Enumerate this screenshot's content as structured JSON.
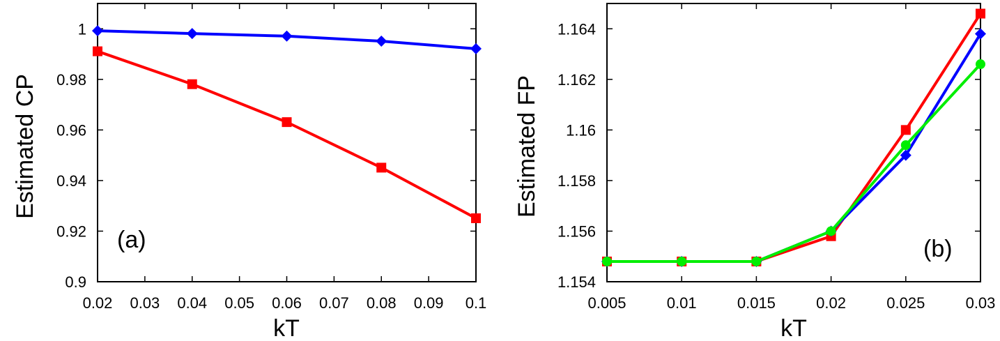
{
  "chart_data": [
    {
      "type": "line",
      "panel_label": "(a)",
      "xlabel": "kT",
      "ylabel": "Estimated CP",
      "xlim": [
        0.02,
        0.1
      ],
      "ylim": [
        0.9,
        1.01
      ],
      "xticks": [
        "0.02",
        "0.03",
        "0.04",
        "0.05",
        "0.06",
        "0.07",
        "0.08",
        "0.09",
        "0.1"
      ],
      "yticks": [
        "0.9",
        "0.92",
        "0.94",
        "0.96",
        "0.98",
        "1"
      ],
      "x": [
        0.02,
        0.04,
        0.06,
        0.08,
        0.1
      ],
      "series": [
        {
          "color": "#0000ff",
          "marker": "diamond",
          "values": [
            0.9992,
            0.9981,
            0.9971,
            0.9951,
            0.9921
          ]
        },
        {
          "color": "#ff0000",
          "marker": "square",
          "values": [
            0.9911,
            0.9781,
            0.9631,
            0.9451,
            0.9251
          ]
        }
      ],
      "grid": false
    },
    {
      "type": "line",
      "panel_label": "(b)",
      "xlabel": "kT",
      "ylabel": "Estimated FP",
      "xlim": [
        0.005,
        0.03
      ],
      "ylim": [
        1.154,
        1.165
      ],
      "xticks": [
        "0.005",
        "0.01",
        "0.015",
        "0.02",
        "0.025",
        "0.03"
      ],
      "yticks": [
        "1.154",
        "1.156",
        "1.158",
        "1.16",
        "1.162",
        "1.164"
      ],
      "x": [
        0.005,
        0.01,
        0.015,
        0.02,
        0.025,
        0.03
      ],
      "series": [
        {
          "color": "#ff0000",
          "marker": "square",
          "values": [
            1.1548,
            1.1548,
            1.1548,
            1.1558,
            1.16,
            1.1646
          ]
        },
        {
          "color": "#0000ff",
          "marker": "diamond",
          "values": [
            1.1548,
            1.1548,
            1.1548,
            1.156,
            1.159,
            1.1638
          ]
        },
        {
          "color": "#00ee00",
          "marker": "circle",
          "values": [
            1.1548,
            1.1548,
            1.1548,
            1.156,
            1.1594,
            1.1626
          ]
        }
      ],
      "grid": false
    }
  ]
}
